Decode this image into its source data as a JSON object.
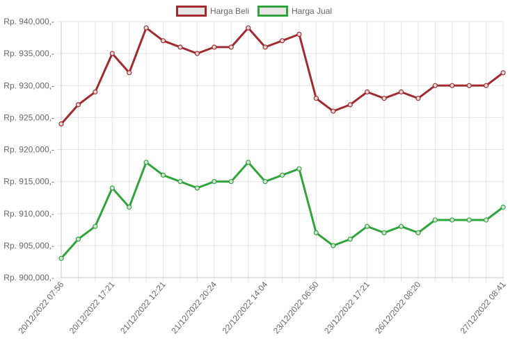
{
  "chart_data": {
    "type": "line",
    "x": [
      "20/12/2022 07:56",
      "",
      "",
      "20/12/2022 17:21",
      "",
      "",
      "21/12/2022 12:21",
      "",
      "",
      "21/12/2022 20:24",
      "",
      "",
      "22/12/2022 14:04",
      "",
      "",
      "23/12/2022 06:50",
      "",
      "",
      "23/12/2022 17:21",
      "",
      "",
      "26/12/2022 08:20",
      "",
      "",
      "",
      "",
      "27/12/2022 08:41"
    ],
    "series": [
      {
        "name": "Harga Beli",
        "color": "#a12a2f",
        "values": [
          924000,
          927000,
          929000,
          935000,
          932000,
          939000,
          937000,
          936000,
          935000,
          936000,
          936000,
          939000,
          936000,
          937000,
          938000,
          928000,
          926000,
          927000,
          929000,
          928000,
          929000,
          928000,
          930000,
          930000,
          930000,
          930000,
          932000
        ]
      },
      {
        "name": "Harga Jual",
        "color": "#2ea43a",
        "values": [
          903000,
          906000,
          908000,
          914000,
          911000,
          918000,
          916000,
          915000,
          914000,
          915000,
          915000,
          918000,
          915000,
          916000,
          917000,
          907000,
          905000,
          906000,
          908000,
          907000,
          908000,
          907000,
          909000,
          909000,
          909000,
          909000,
          911000
        ]
      }
    ],
    "ylim": [
      900000,
      940000
    ],
    "yticks": [
      {
        "value": 940000,
        "label": "Rp. 940,000,-"
      },
      {
        "value": 935000,
        "label": "Rp. 935,000,-"
      },
      {
        "value": 930000,
        "label": "Rp. 930,000,-"
      },
      {
        "value": 925000,
        "label": "Rp. 925,000,-"
      },
      {
        "value": 920000,
        "label": "Rp. 920,000,-"
      },
      {
        "value": 915000,
        "label": "Rp. 915,000,-"
      },
      {
        "value": 910000,
        "label": "Rp. 910,000,-"
      },
      {
        "value": 905000,
        "label": "Rp. 905,000,-"
      },
      {
        "value": 900000,
        "label": "Rp. 900,000,-"
      }
    ],
    "xticks": [
      {
        "index": 0,
        "label": "20/12/2022 07:56"
      },
      {
        "index": 3,
        "label": "20/12/2022 17:21"
      },
      {
        "index": 6,
        "label": "21/12/2022 12:21"
      },
      {
        "index": 9,
        "label": "21/12/2022 20:24"
      },
      {
        "index": 12,
        "label": "22/12/2022 14:04"
      },
      {
        "index": 15,
        "label": "23/12/2022 06:50"
      },
      {
        "index": 18,
        "label": "23/12/2022 17:21"
      },
      {
        "index": 21,
        "label": "26/12/2022 08:20"
      },
      {
        "index": 26,
        "label": "27/12/2022 08:41"
      }
    ],
    "grid": true,
    "legend_position": "top-center"
  }
}
